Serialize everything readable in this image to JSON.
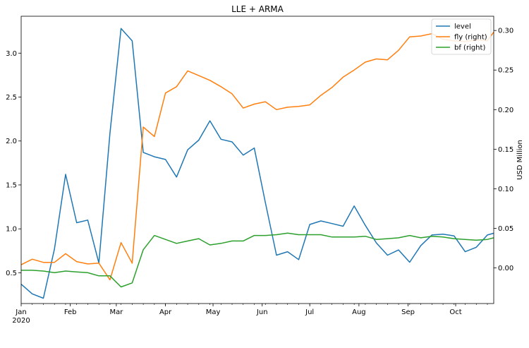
{
  "chart_data": {
    "type": "line",
    "title": "LLE + ARMA",
    "xlabel": "",
    "ylabel_left": "",
    "ylabel_right": "USD Million",
    "legend": {
      "placement": "top-right",
      "entries": [
        "level",
        "fly (right)",
        "bf (right)"
      ]
    },
    "colors": {
      "level": "#1f77b4",
      "fly (right)": "#ff7f0e",
      "bf (right)": "#2ca02c"
    },
    "x_ticks": [
      {
        "x": 0,
        "label": "Jan"
      },
      {
        "x": 31,
        "label": "Feb"
      },
      {
        "x": 60,
        "label": "Mar"
      },
      {
        "x": 91,
        "label": "Apr"
      },
      {
        "x": 121,
        "label": "May"
      },
      {
        "x": 152,
        "label": "Jun"
      },
      {
        "x": 182,
        "label": "Jul"
      },
      {
        "x": 213,
        "label": "Aug"
      },
      {
        "x": 244,
        "label": "Sep"
      },
      {
        "x": 274,
        "label": "Oct"
      }
    ],
    "x_year_label": "2020",
    "xlim": [
      0,
      298
    ],
    "x_unit": "day of year 2020",
    "ylim_left": [
      0.15,
      3.42
    ],
    "yticks_left": [
      0.5,
      1.0,
      1.5,
      2.0,
      2.5,
      3.0
    ],
    "ylim_right": [
      -0.045,
      0.318
    ],
    "yticks_right": [
      0.0,
      0.05,
      0.1,
      0.15,
      0.2,
      0.25,
      0.3
    ],
    "series": [
      {
        "name": "level",
        "axis": "left",
        "x": [
          0,
          7,
          14,
          21,
          28,
          35,
          42,
          49,
          56,
          63,
          70,
          77,
          84,
          91,
          98,
          105,
          112,
          119,
          126,
          133,
          140,
          147,
          154,
          161,
          168,
          175,
          182,
          189,
          196,
          203,
          210,
          217,
          224,
          231,
          238,
          245,
          252,
          259,
          266,
          273,
          280,
          287,
          294,
          298
        ],
        "values": [
          0.37,
          0.26,
          0.21,
          0.77,
          1.62,
          1.07,
          1.1,
          0.61,
          2.09,
          3.28,
          3.14,
          1.87,
          1.82,
          1.79,
          1.59,
          1.9,
          2.01,
          2.23,
          2.02,
          1.99,
          1.84,
          1.92,
          1.3,
          0.7,
          0.74,
          0.65,
          1.05,
          1.09,
          1.06,
          1.03,
          1.26,
          1.04,
          0.84,
          0.7,
          0.76,
          0.62,
          0.81,
          0.93,
          0.94,
          0.92,
          0.74,
          0.79,
          0.93,
          0.95
        ]
      },
      {
        "name": "fly (right)",
        "axis": "right",
        "x": [
          0,
          7,
          14,
          21,
          28,
          35,
          42,
          49,
          56,
          63,
          70,
          77,
          84,
          91,
          98,
          105,
          112,
          119,
          126,
          133,
          140,
          147,
          154,
          161,
          168,
          175,
          182,
          189,
          196,
          203,
          210,
          217,
          224,
          231,
          238,
          245,
          252,
          259,
          266,
          273,
          280,
          287,
          294,
          298
        ],
        "values": [
          0.004,
          0.011,
          0.007,
          0.007,
          0.018,
          0.008,
          0.005,
          0.006,
          -0.015,
          0.032,
          0.006,
          0.178,
          0.166,
          0.221,
          0.229,
          0.249,
          0.243,
          0.237,
          0.229,
          0.22,
          0.202,
          0.207,
          0.21,
          0.2,
          0.203,
          0.204,
          0.206,
          0.218,
          0.228,
          0.241,
          0.25,
          0.26,
          0.264,
          0.263,
          0.275,
          0.292,
          0.293,
          0.296,
          0.289,
          0.287,
          0.286,
          0.288,
          0.287,
          0.298
        ]
      },
      {
        "name": "bf (right)",
        "axis": "right",
        "x": [
          0,
          7,
          14,
          21,
          28,
          35,
          42,
          49,
          56,
          63,
          70,
          77,
          84,
          91,
          98,
          105,
          112,
          119,
          126,
          133,
          140,
          147,
          154,
          161,
          168,
          175,
          182,
          189,
          196,
          203,
          210,
          217,
          224,
          231,
          238,
          245,
          252,
          259,
          266,
          273,
          280,
          287,
          294,
          298
        ],
        "values": [
          -0.003,
          -0.003,
          -0.004,
          -0.006,
          -0.004,
          -0.005,
          -0.006,
          -0.01,
          -0.01,
          -0.024,
          -0.019,
          0.023,
          0.041,
          0.036,
          0.031,
          0.034,
          0.037,
          0.029,
          0.031,
          0.034,
          0.034,
          0.041,
          0.041,
          0.042,
          0.044,
          0.042,
          0.042,
          0.042,
          0.039,
          0.039,
          0.039,
          0.04,
          0.036,
          0.037,
          0.038,
          0.041,
          0.038,
          0.04,
          0.039,
          0.037,
          0.036,
          0.035,
          0.036,
          0.038
        ]
      }
    ]
  }
}
